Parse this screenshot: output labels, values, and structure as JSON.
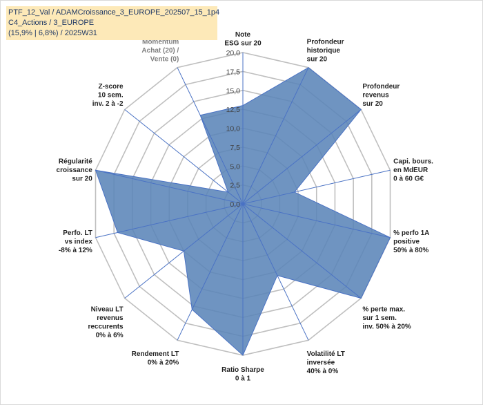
{
  "header": {
    "line1": "PTF_12_Val / ADAMCroissance_3_EUROPE_202507_15_1p4",
    "line2": "C4_Actions / 3_EUROPE",
    "line3": "(15,9% | 6,8%) / 2025W31"
  },
  "colors": {
    "fill": "#5b85b8",
    "stroke": "#4a72c4",
    "grid": "#bfbfbf",
    "header_bg": "#fde9b8"
  },
  "chart_data": {
    "type": "radar",
    "title": "",
    "rmax": 20,
    "tick_values": [
      0,
      2.5,
      5,
      7.5,
      10,
      12.5,
      15,
      17.5,
      20
    ],
    "tick_labels": [
      "0,0",
      "2,5",
      "5,0",
      "7,5",
      "10,0",
      "12,5",
      "15,0",
      "17,5",
      "20,0"
    ],
    "axes": [
      {
        "label": [
          "Note",
          "ESG sur 20"
        ],
        "value": 13,
        "muted": false
      },
      {
        "label": [
          "Profondeur",
          "historique",
          "sur 20"
        ],
        "value": 20,
        "muted": false
      },
      {
        "label": [
          "Profondeur",
          "revenus",
          "sur 20"
        ],
        "value": 20,
        "muted": false
      },
      {
        "label": [
          "Capi. bours.",
          "en MdEUR",
          "0 à 60 G€"
        ],
        "value": 7,
        "muted": false
      },
      {
        "label": [
          "% perfo 1A",
          "positive",
          "50% à 80%"
        ],
        "value": 20,
        "muted": false
      },
      {
        "label": [
          "% perte max.",
          "sur 1 sem.",
          "inv. 50% à 20%"
        ],
        "value": 20,
        "muted": false
      },
      {
        "label": [
          "Volatilité LT",
          "inversée",
          "40% à 0%"
        ],
        "value": 10.5,
        "muted": false
      },
      {
        "label": [
          "Ratio Sharpe",
          "0 à 1"
        ],
        "value": 20,
        "muted": false
      },
      {
        "label": [
          "Rendement LT",
          "0% à 20%"
        ],
        "value": 15.5,
        "muted": false
      },
      {
        "label": [
          "Niveau LT",
          "revenus",
          "reccurents",
          "0% à 6%"
        ],
        "value": 10,
        "muted": false
      },
      {
        "label": [
          "Perfo. LT",
          "vs index",
          "-8% à 12%"
        ],
        "value": 17,
        "muted": false
      },
      {
        "label": [
          "Régularité",
          "croissance",
          "sur 20"
        ],
        "value": 20,
        "muted": false
      },
      {
        "label": [
          "Z-score",
          "10 sem.",
          "inv. 2 à -2"
        ],
        "value": 2.5,
        "muted": false
      },
      {
        "label": [
          "Momentum",
          "Achat (20) /",
          "Vente (0)"
        ],
        "value": 13,
        "muted": true
      }
    ]
  }
}
